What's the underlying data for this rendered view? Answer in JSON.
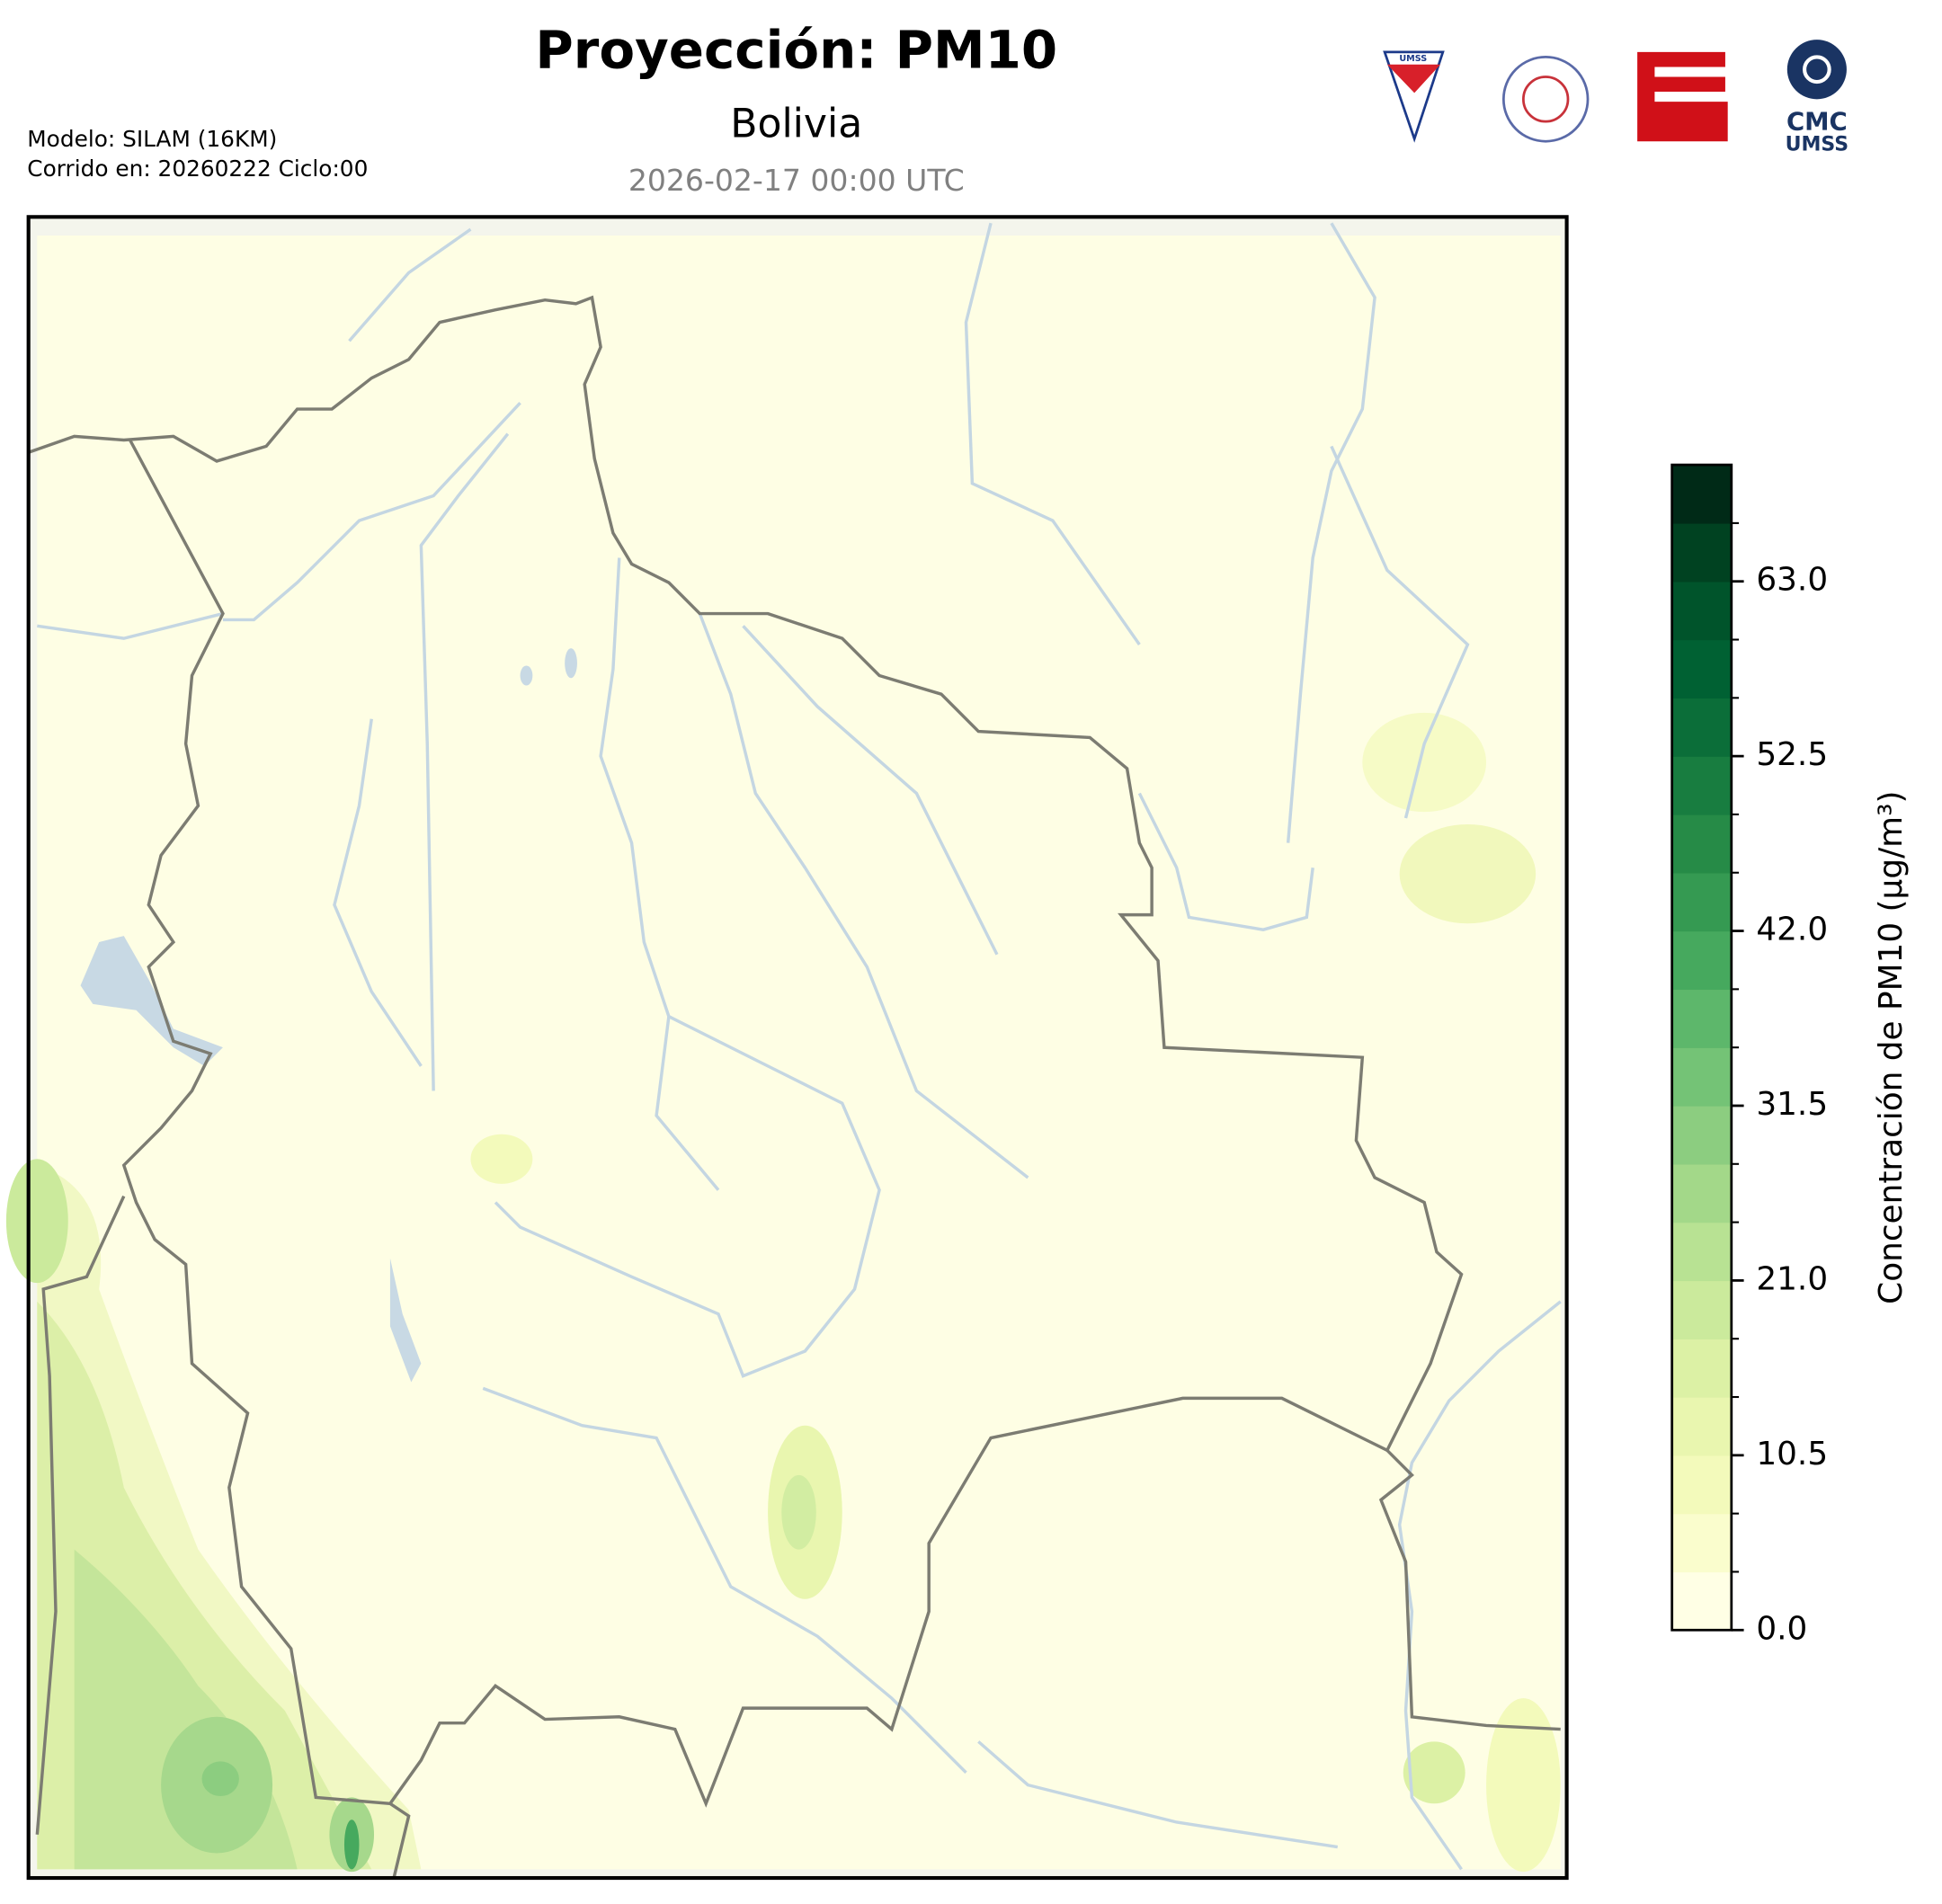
{
  "header": {
    "title": "Proyección: PM10",
    "region": "Bolivia",
    "valid_time": "2026-02-17 00:00 UTC",
    "model": "Modelo: SILAM (16KM)",
    "run": "Corrido en: 20260222 Ciclo:00"
  },
  "logos": {
    "umss": "UMSS",
    "cmc": "CMC",
    "cmc_sub": "UMSS"
  },
  "colorbar": {
    "label": "Concentración de PM10 (µg/m³)",
    "lim": [
      0,
      70
    ],
    "ticks": [
      {
        "value": 0,
        "label": "0.0"
      },
      10.5,
      {
        "value": 21,
        "label": "21.0"
      },
      31.5,
      {
        "value": 42,
        "label": "42.0"
      },
      52.5,
      {
        "value": 63,
        "label": "63.0"
      }
    ],
    "colors": [
      "#ffffe5",
      "#fafdcd",
      "#f3fabb",
      "#e9f6af",
      "#dcf1a5",
      "#cbea9c",
      "#b8e293",
      "#a3d889",
      "#8ccd80",
      "#74c376",
      "#5db76b",
      "#46a95e",
      "#359a52",
      "#268b47",
      "#187d40",
      "#0b6e39",
      "#006133",
      "#00542b",
      "#004221",
      "#002a17"
    ]
  }
}
